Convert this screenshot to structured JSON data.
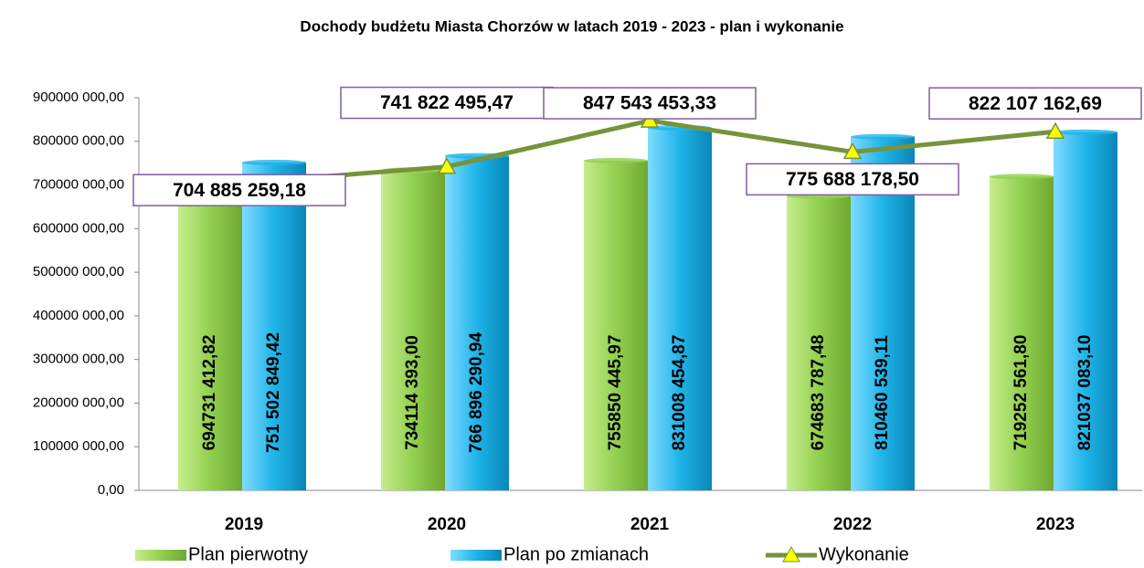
{
  "chart_data": {
    "type": "bar-line",
    "title": "Dochody budżetu Miasta Chorzów w latach 2019 - 2023 - plan i wykonanie",
    "categories": [
      "2019",
      "2020",
      "2021",
      "2022",
      "2023"
    ],
    "series": [
      {
        "name": "Plan pierwotny",
        "type": "bar",
        "color": "#92d050",
        "values": [
          694731412.82,
          734114393.0,
          755850445.97,
          674683787.48,
          719252561.8
        ],
        "value_labels": [
          "694731 412,82",
          "734114 393,00",
          "755850 445,97",
          "674683 787,48",
          "719252 561,80"
        ]
      },
      {
        "name": "Plan po zmianach",
        "type": "bar",
        "color": "#1fb4e8",
        "values": [
          751502849.42,
          766896290.94,
          831008454.87,
          810460539.11,
          821037083.1
        ],
        "value_labels": [
          "751 502 849,42",
          "766 896 290,94",
          "831008 454,87",
          "810460 539,11",
          "821037 083,10"
        ]
      },
      {
        "name": "Wykonanie",
        "type": "line",
        "color": "#77933c",
        "marker_color": "#ffff00",
        "values": [
          704885259.18,
          741822495.47,
          847543453.33,
          775688178.5,
          822107162.69
        ],
        "value_labels": [
          "704 885 259,18",
          "741 822 495,47",
          "847 543 453,33",
          "775 688 178,50",
          "822 107 162,69"
        ]
      }
    ],
    "ylim": [
      0,
      900000000
    ],
    "yticks": [
      {
        "value": 0,
        "label": "0,00"
      },
      {
        "value": 100000000,
        "label": "100000 000,00"
      },
      {
        "value": 200000000,
        "label": "200000 000,00"
      },
      {
        "value": 300000000,
        "label": "300000 000,00"
      },
      {
        "value": 400000000,
        "label": "400000 000,00"
      },
      {
        "value": 500000000,
        "label": "500000 000,00"
      },
      {
        "value": 600000000,
        "label": "600000 000,00"
      },
      {
        "value": 700000000,
        "label": "700000 000,00"
      },
      {
        "value": 800000000,
        "label": "800000 000,00"
      },
      {
        "value": 900000000,
        "label": "900000 000,00"
      }
    ],
    "legend": "bottom"
  }
}
